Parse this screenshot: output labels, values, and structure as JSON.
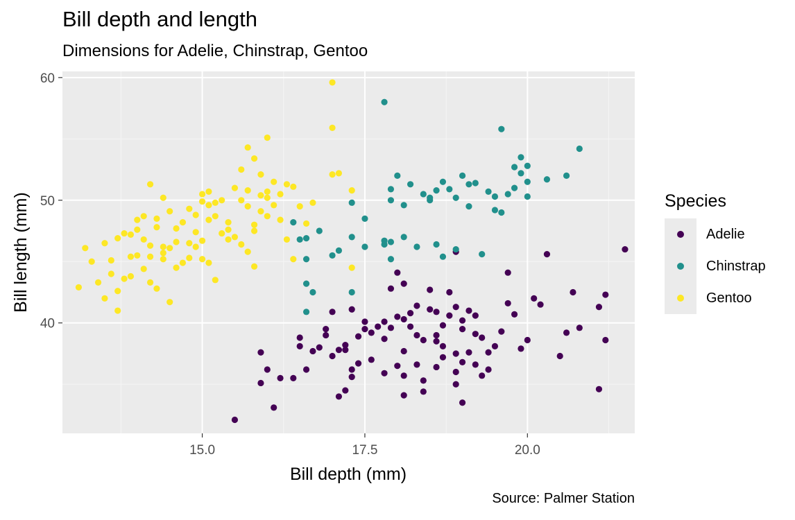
{
  "header": {
    "title": "Bill depth and length",
    "subtitle": "Dimensions for Adelie, Chinstrap, Gentoo",
    "caption": "Source: Palmer Station"
  },
  "legend": {
    "title": "Species",
    "items": [
      {
        "label": "Adelie",
        "color": "#440154"
      },
      {
        "label": "Chinstrap",
        "color": "#21908C"
      },
      {
        "label": "Gentoo",
        "color": "#FDE725"
      }
    ]
  },
  "chart_data": {
    "type": "scatter",
    "title": "Bill depth and length",
    "subtitle": "Dimensions for Adelie, Chinstrap, Gentoo",
    "xlabel": "Bill depth (mm)",
    "ylabel": "Bill length (mm)",
    "xlim": [
      12.85,
      21.65
    ],
    "ylim": [
      31.0,
      60.5
    ],
    "x_ticks": [
      15.0,
      17.5,
      20.0
    ],
    "x_tick_labels": [
      "15.0",
      "17.5",
      "20.0"
    ],
    "y_ticks": [
      40,
      50,
      60
    ],
    "y_tick_labels": [
      "40",
      "50",
      "60"
    ],
    "grid": true,
    "legend_position": "right",
    "series": [
      {
        "name": "Adelie",
        "color": "#440154",
        "points": [
          [
            15.5,
            32.1
          ],
          [
            16.1,
            33.1
          ],
          [
            17.3,
            35.6
          ],
          [
            17.3,
            36.2
          ],
          [
            17.8,
            35.9
          ],
          [
            18.0,
            36.5
          ],
          [
            18.1,
            35.7
          ],
          [
            18.3,
            36.6
          ],
          [
            18.4,
            35.3
          ],
          [
            18.6,
            36.4
          ],
          [
            18.7,
            37.2
          ],
          [
            18.9,
            36.0
          ],
          [
            19.0,
            36.8
          ],
          [
            19.2,
            36.6
          ],
          [
            19.3,
            35.7
          ],
          [
            16.6,
            36.2
          ],
          [
            16.7,
            37.7
          ],
          [
            16.8,
            38.0
          ],
          [
            17.0,
            37.3
          ],
          [
            17.1,
            37.8
          ],
          [
            17.2,
            38.2
          ],
          [
            17.4,
            38.9
          ],
          [
            17.5,
            39.5
          ],
          [
            17.6,
            39.2
          ],
          [
            17.7,
            39.7
          ],
          [
            17.8,
            40.1
          ],
          [
            17.9,
            39.6
          ],
          [
            18.0,
            40.5
          ],
          [
            18.1,
            40.3
          ],
          [
            18.2,
            40.8
          ],
          [
            18.3,
            39.0
          ],
          [
            18.4,
            38.6
          ],
          [
            18.5,
            41.1
          ],
          [
            18.6,
            40.9
          ],
          [
            18.7,
            39.8
          ],
          [
            18.8,
            40.6
          ],
          [
            18.9,
            41.3
          ],
          [
            19.0,
            40.2
          ],
          [
            19.1,
            41.0
          ],
          [
            19.2,
            39.1
          ],
          [
            19.3,
            38.8
          ],
          [
            19.4,
            37.6
          ],
          [
            19.5,
            38.1
          ],
          [
            19.6,
            39.3
          ],
          [
            19.7,
            41.6
          ],
          [
            19.8,
            40.7
          ],
          [
            19.9,
            37.9
          ],
          [
            20.0,
            38.6
          ],
          [
            20.1,
            42.0
          ],
          [
            20.2,
            41.5
          ],
          [
            20.3,
            45.6
          ],
          [
            20.5,
            37.3
          ],
          [
            20.6,
            39.2
          ],
          [
            20.7,
            42.5
          ],
          [
            20.8,
            39.6
          ],
          [
            21.1,
            41.3
          ],
          [
            21.2,
            42.3
          ],
          [
            21.2,
            38.6
          ],
          [
            21.1,
            34.6
          ],
          [
            21.5,
            46.0
          ],
          [
            18.9,
            45.8
          ],
          [
            18.0,
            44.1
          ],
          [
            18.1,
            43.2
          ],
          [
            19.7,
            44.1
          ],
          [
            17.9,
            42.8
          ],
          [
            18.5,
            42.7
          ],
          [
            16.9,
            39.0
          ],
          [
            17.0,
            40.9
          ],
          [
            17.3,
            41.1
          ],
          [
            16.5,
            38.1
          ],
          [
            16.4,
            35.5
          ],
          [
            15.9,
            37.6
          ],
          [
            16.0,
            36.2
          ],
          [
            16.2,
            35.5
          ],
          [
            15.9,
            35.1
          ],
          [
            17.1,
            34.0
          ],
          [
            17.2,
            34.5
          ],
          [
            18.1,
            34.1
          ],
          [
            18.4,
            34.4
          ],
          [
            18.9,
            35.0
          ],
          [
            19.0,
            33.5
          ],
          [
            16.5,
            38.8
          ],
          [
            16.9,
            39.5
          ],
          [
            17.5,
            40.1
          ],
          [
            17.8,
            38.7
          ],
          [
            18.2,
            39.7
          ],
          [
            18.6,
            38.5
          ],
          [
            19.0,
            39.5
          ],
          [
            19.2,
            40.6
          ],
          [
            17.6,
            37.0
          ],
          [
            18.1,
            37.7
          ],
          [
            18.7,
            38.1
          ],
          [
            19.4,
            36.2
          ],
          [
            18.3,
            41.4
          ],
          [
            18.8,
            42.5
          ],
          [
            17.4,
            36.7
          ],
          [
            18.9,
            37.5
          ],
          [
            17.2,
            37.8
          ],
          [
            18.6,
            39.0
          ],
          [
            19.1,
            37.6
          ]
        ]
      },
      {
        "name": "Chinstrap",
        "color": "#21908C",
        "points": [
          [
            17.8,
            58.0
          ],
          [
            19.6,
            55.8
          ],
          [
            20.8,
            54.2
          ],
          [
            19.9,
            53.5
          ],
          [
            20.0,
            52.8
          ],
          [
            19.8,
            52.7
          ],
          [
            20.6,
            52.0
          ],
          [
            20.3,
            51.7
          ],
          [
            19.0,
            52.0
          ],
          [
            19.1,
            51.3
          ],
          [
            18.6,
            50.8
          ],
          [
            18.7,
            51.5
          ],
          [
            18.5,
            50.2
          ],
          [
            18.8,
            50.9
          ],
          [
            18.4,
            50.5
          ],
          [
            18.2,
            51.3
          ],
          [
            18.0,
            52.0
          ],
          [
            17.9,
            50.0
          ],
          [
            17.9,
            50.9
          ],
          [
            18.1,
            49.6
          ],
          [
            18.9,
            50.2
          ],
          [
            19.1,
            49.5
          ],
          [
            19.4,
            50.7
          ],
          [
            19.5,
            50.3
          ],
          [
            19.6,
            49.0
          ],
          [
            19.7,
            50.5
          ],
          [
            19.8,
            51.0
          ],
          [
            20.0,
            50.3
          ],
          [
            19.2,
            51.4
          ],
          [
            17.3,
            49.8
          ],
          [
            17.5,
            48.5
          ],
          [
            17.3,
            47.0
          ],
          [
            17.5,
            46.2
          ],
          [
            17.8,
            46.4
          ],
          [
            17.9,
            46.6
          ],
          [
            18.1,
            47.0
          ],
          [
            18.3,
            46.2
          ],
          [
            18.6,
            46.4
          ],
          [
            18.7,
            45.4
          ],
          [
            18.9,
            46.0
          ],
          [
            19.3,
            45.6
          ],
          [
            17.1,
            45.9
          ],
          [
            17.0,
            45.5
          ],
          [
            16.8,
            47.5
          ],
          [
            16.6,
            46.9
          ],
          [
            16.5,
            46.8
          ],
          [
            16.6,
            45.2
          ],
          [
            16.4,
            48.2
          ],
          [
            16.6,
            43.2
          ],
          [
            16.7,
            42.5
          ],
          [
            16.6,
            40.9
          ],
          [
            17.3,
            42.5
          ],
          [
            17.9,
            45.2
          ],
          [
            17.8,
            46.7
          ],
          [
            19.9,
            52.2
          ],
          [
            20.0,
            51.5
          ],
          [
            19.5,
            49.2
          ],
          [
            18.5,
            50.0
          ]
        ]
      },
      {
        "name": "Gentoo",
        "color": "#FDE725",
        "points": [
          [
            17.0,
            59.6
          ],
          [
            17.0,
            55.9
          ],
          [
            16.0,
            55.1
          ],
          [
            15.7,
            54.3
          ],
          [
            15.8,
            53.4
          ],
          [
            15.9,
            52.1
          ],
          [
            15.6,
            52.5
          ],
          [
            17.1,
            52.2
          ],
          [
            17.0,
            52.1
          ],
          [
            16.1,
            51.5
          ],
          [
            16.3,
            51.3
          ],
          [
            16.4,
            51.1
          ],
          [
            16.7,
            49.8
          ],
          [
            17.3,
            50.8
          ],
          [
            16.2,
            50.5
          ],
          [
            16.0,
            50.2
          ],
          [
            15.9,
            50.4
          ],
          [
            15.6,
            50.0
          ],
          [
            15.7,
            50.8
          ],
          [
            15.5,
            51.0
          ],
          [
            15.3,
            50.0
          ],
          [
            15.1,
            50.7
          ],
          [
            15.0,
            50.5
          ],
          [
            15.0,
            49.9
          ],
          [
            15.1,
            49.6
          ],
          [
            15.2,
            48.7
          ],
          [
            14.8,
            49.3
          ],
          [
            14.9,
            48.8
          ],
          [
            14.7,
            48.2
          ],
          [
            14.5,
            49.1
          ],
          [
            14.4,
            50.2
          ],
          [
            14.2,
            51.3
          ],
          [
            14.3,
            48.5
          ],
          [
            14.1,
            48.7
          ],
          [
            14.0,
            47.6
          ],
          [
            13.9,
            47.2
          ],
          [
            13.8,
            47.3
          ],
          [
            13.7,
            46.9
          ],
          [
            13.5,
            46.5
          ],
          [
            13.2,
            46.1
          ],
          [
            13.3,
            45.0
          ],
          [
            13.4,
            43.3
          ],
          [
            13.6,
            44.0
          ],
          [
            13.1,
            42.9
          ],
          [
            13.5,
            42.0
          ],
          [
            13.7,
            41.0
          ],
          [
            13.7,
            42.6
          ],
          [
            13.8,
            43.6
          ],
          [
            13.9,
            43.8
          ],
          [
            14.0,
            45.5
          ],
          [
            14.1,
            44.4
          ],
          [
            14.2,
            43.3
          ],
          [
            14.3,
            42.8
          ],
          [
            14.4,
            45.2
          ],
          [
            14.5,
            46.1
          ],
          [
            14.6,
            46.6
          ],
          [
            14.7,
            44.9
          ],
          [
            14.8,
            45.3
          ],
          [
            14.9,
            46.2
          ],
          [
            15.0,
            46.7
          ],
          [
            15.0,
            45.2
          ],
          [
            15.2,
            43.5
          ],
          [
            15.3,
            47.3
          ],
          [
            15.4,
            46.8
          ],
          [
            15.5,
            47.0
          ],
          [
            15.6,
            46.4
          ],
          [
            15.7,
            45.8
          ],
          [
            15.8,
            44.6
          ],
          [
            15.8,
            47.5
          ],
          [
            15.9,
            49.1
          ],
          [
            16.0,
            48.7
          ],
          [
            16.1,
            49.6
          ],
          [
            16.2,
            48.4
          ],
          [
            16.3,
            46.8
          ],
          [
            16.4,
            45.2
          ],
          [
            16.5,
            49.5
          ],
          [
            16.6,
            48.1
          ],
          [
            17.3,
            44.5
          ],
          [
            14.6,
            44.5
          ],
          [
            14.5,
            41.7
          ],
          [
            14.2,
            46.3
          ],
          [
            14.3,
            47.8
          ],
          [
            14.4,
            45.7
          ],
          [
            14.8,
            46.5
          ],
          [
            14.9,
            47.4
          ],
          [
            15.1,
            48.4
          ],
          [
            15.4,
            48.2
          ],
          [
            15.1,
            44.9
          ],
          [
            14.6,
            47.7
          ],
          [
            14.4,
            46.2
          ],
          [
            15.7,
            49.5
          ],
          [
            15.8,
            48.0
          ],
          [
            16.0,
            50.7
          ],
          [
            15.4,
            47.6
          ],
          [
            15.2,
            49.8
          ],
          [
            13.9,
            45.4
          ],
          [
            13.6,
            45.1
          ],
          [
            14.0,
            48.4
          ],
          [
            14.2,
            45.4
          ],
          [
            14.1,
            46.8
          ]
        ]
      }
    ]
  }
}
